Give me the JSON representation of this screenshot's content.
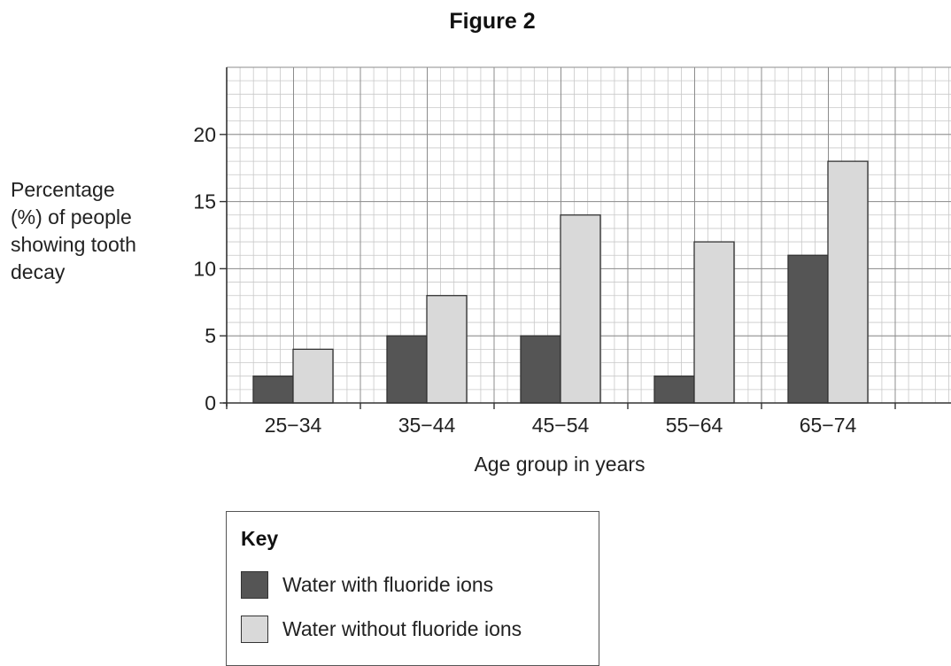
{
  "figure": {
    "title": "Figure 2"
  },
  "chart_data": {
    "type": "bar",
    "title": "Figure 2",
    "ylabel_lines": [
      "Percentage",
      "(%) of people",
      "showing tooth",
      "decay"
    ],
    "xlabel": "Age group in years",
    "categories": [
      "25−34",
      "35−44",
      "45−54",
      "55−64",
      "65−74"
    ],
    "series": [
      {
        "name": "Water with fluoride ions",
        "color": "#555555",
        "values": [
          2,
          5,
          5,
          2,
          11
        ]
      },
      {
        "name": "Water without fluoride ions",
        "color": "#d9d9d9",
        "values": [
          4,
          8,
          14,
          12,
          18
        ]
      }
    ],
    "ylim": [
      0,
      25
    ],
    "yticks": [
      0,
      5,
      10,
      15,
      20
    ],
    "grid": true,
    "legend": {
      "title": "Key",
      "position": "bottom-left"
    }
  }
}
